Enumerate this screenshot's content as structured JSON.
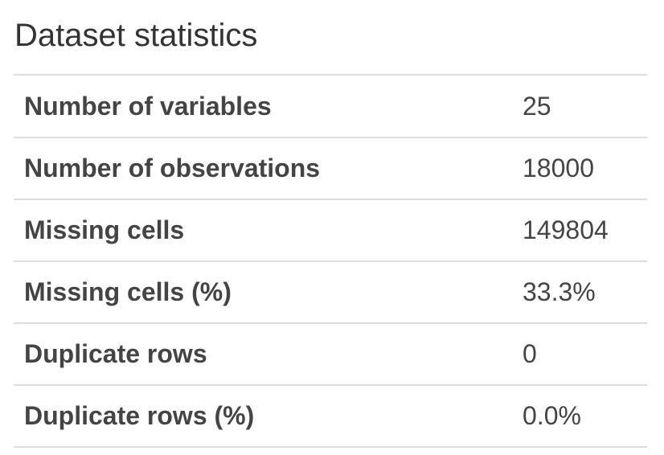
{
  "section": {
    "title": "Dataset statistics"
  },
  "stats": {
    "rows": [
      {
        "label": "Number of variables",
        "value": "25"
      },
      {
        "label": "Number of observations",
        "value": "18000"
      },
      {
        "label": "Missing cells",
        "value": "149804"
      },
      {
        "label": "Missing cells (%)",
        "value": "33.3%"
      },
      {
        "label": "Duplicate rows",
        "value": "0"
      },
      {
        "label": "Duplicate rows (%)",
        "value": "0.0%"
      }
    ]
  }
}
